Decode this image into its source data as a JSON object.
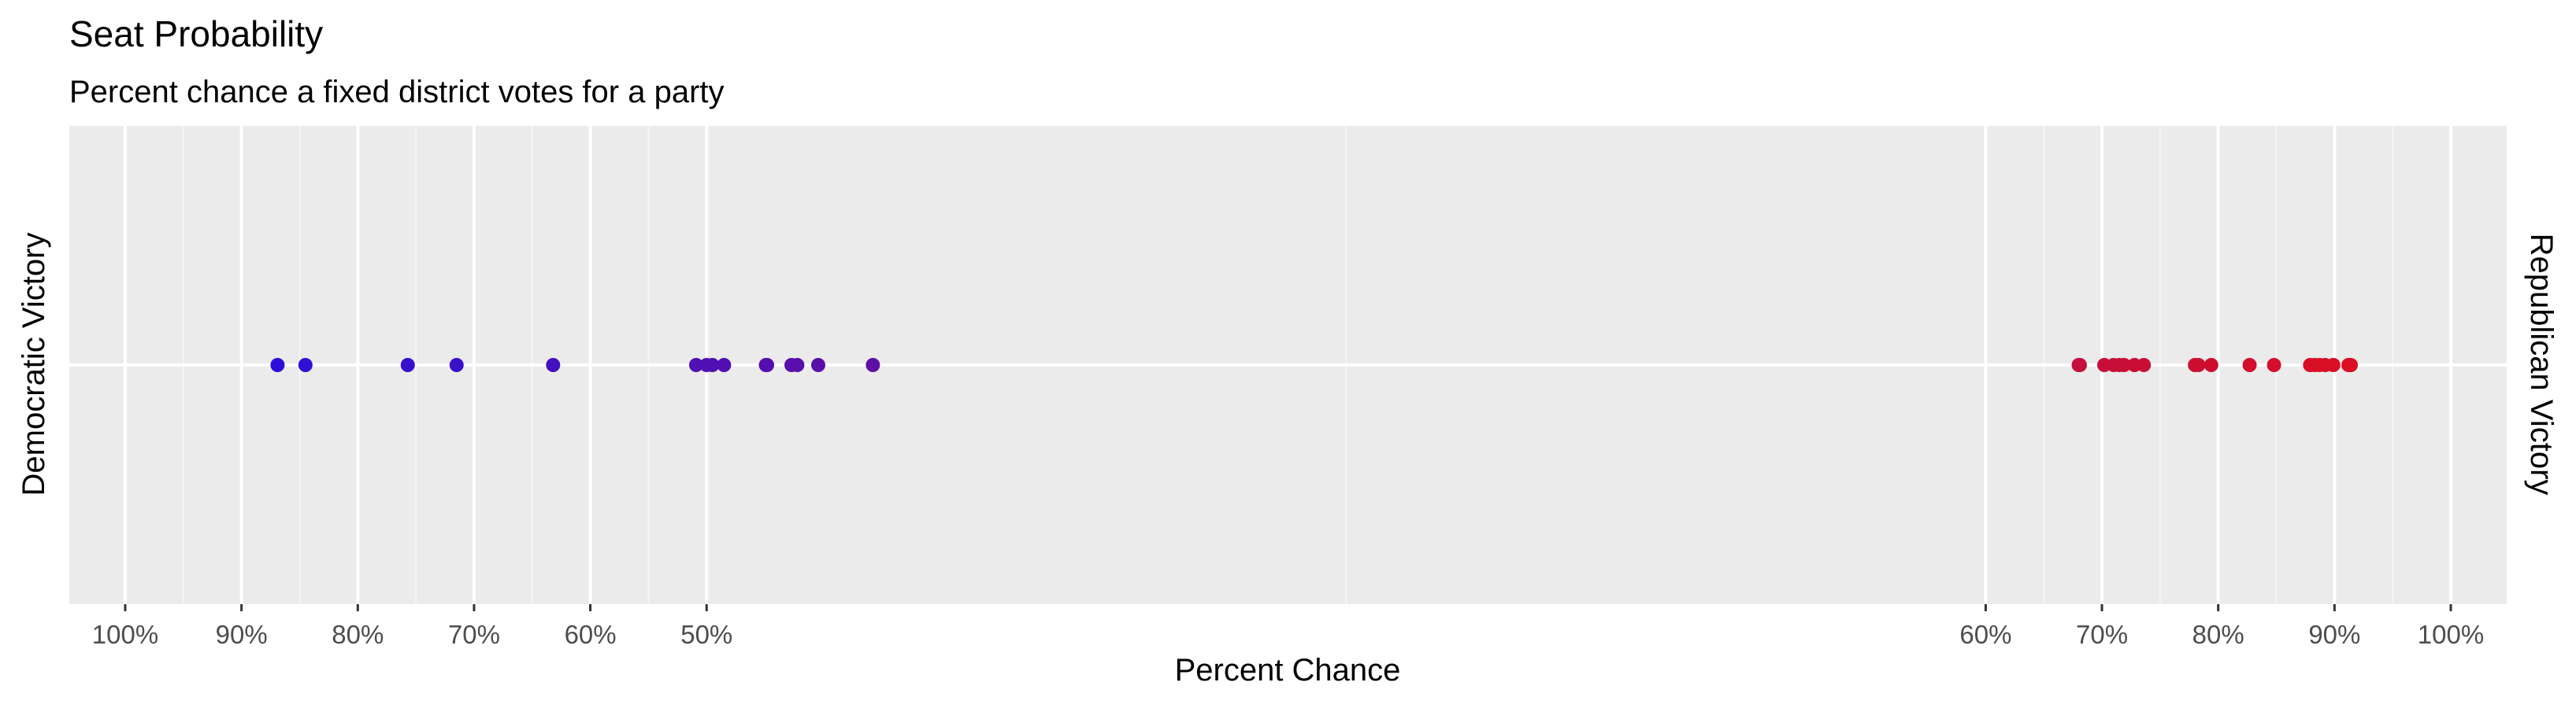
{
  "chart_data": {
    "type": "scatter",
    "title": "Seat Probability",
    "subtitle": "Percent chance a  fixed district votes for a party",
    "xlabel": "Percent Chance",
    "ylabel_left": "Democratic Victory",
    "ylabel_right": "Republican Victory",
    "x_tick_positions": [
      -1.0,
      -0.9,
      -0.8,
      -0.7,
      -0.6,
      -0.5,
      0.6,
      0.7,
      0.8,
      0.9,
      1.0
    ],
    "x_tick_labels": [
      "100%",
      "90%",
      "80%",
      "70%",
      "60%",
      "50%",
      "60%",
      "70%",
      "80%",
      "90%",
      "100%"
    ],
    "xlim": [
      -1.0,
      1.0
    ],
    "x_encoding": "signed-probability: negative = Democratic chance, positive = Republican chance",
    "grid": true,
    "legend": "none",
    "colors": {
      "panel_background": "#ebebeb",
      "grid_major": "#ffffff",
      "grid_minor": "#f5f5f5",
      "democratic": "#1f10e6",
      "republican": "#e30e1a"
    },
    "points": [
      {
        "x": -0.869
      },
      {
        "x": -0.845
      },
      {
        "x": -0.757
      },
      {
        "x": -0.715
      },
      {
        "x": -0.632
      },
      {
        "x": -0.509
      },
      {
        "x": -0.5
      },
      {
        "x": -0.495
      },
      {
        "x": -0.485
      },
      {
        "x": -0.449
      },
      {
        "x": -0.448
      },
      {
        "x": -0.427
      },
      {
        "x": -0.422
      },
      {
        "x": -0.404
      },
      {
        "x": -0.357
      },
      {
        "x": 0.68
      },
      {
        "x": 0.681
      },
      {
        "x": 0.702
      },
      {
        "x": 0.71
      },
      {
        "x": 0.715
      },
      {
        "x": 0.719
      },
      {
        "x": 0.728
      },
      {
        "x": 0.736
      },
      {
        "x": 0.78
      },
      {
        "x": 0.783
      },
      {
        "x": 0.794
      },
      {
        "x": 0.827
      },
      {
        "x": 0.848
      },
      {
        "x": 0.879
      },
      {
        "x": 0.883
      },
      {
        "x": 0.887
      },
      {
        "x": 0.892
      },
      {
        "x": 0.899
      },
      {
        "x": 0.912
      },
      {
        "x": 0.914
      }
    ]
  }
}
